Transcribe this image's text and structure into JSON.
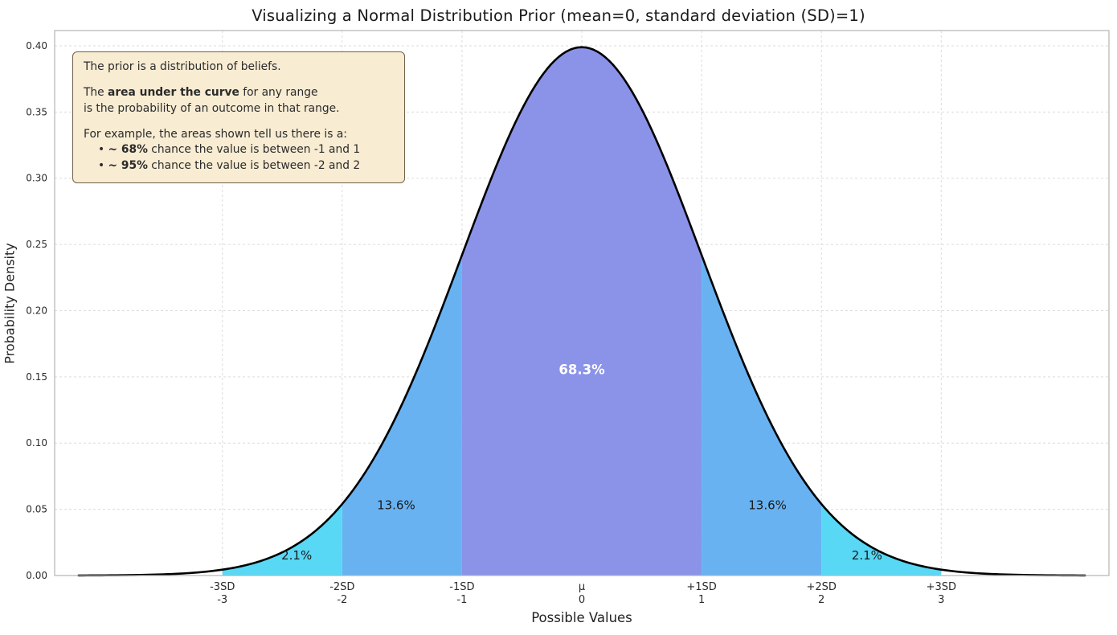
{
  "title": "Visualizing a Normal Distribution Prior (mean=0, standard deviation (SD)=1)",
  "annotation": {
    "line1": "The prior is a distribution of beliefs.",
    "line2_pre": "The ",
    "line2_bold": "area under the curve",
    "line2_post": " for any range",
    "line3": "is the probability of an outcome in that range.",
    "line4": "For example, the areas shown tell us there is a:",
    "bullet_glyph": "•",
    "bullet1_bold": "~ 68%",
    "bullet1_rest": " chance the value is between -1 and 1",
    "bullet2_bold": "~ 95%",
    "bullet2_rest": " chance the value is between -2 and 2"
  },
  "chart_data": {
    "type": "area",
    "title": "Visualizing a Normal Distribution Prior (mean=0, standard deviation (SD)=1)",
    "xlabel": "Possible Values",
    "ylabel": "Probability Density",
    "distribution": "normal",
    "mean": 0,
    "sd": 1,
    "xlim": [
      -4.4,
      4.4
    ],
    "ylim": [
      0,
      0.4115
    ],
    "curve_range": [
      -4.2,
      4.2
    ],
    "grid": true,
    "grid_color": "#dcdcdc",
    "spine_color": "#b5b5b5",
    "curve_color": "#000000",
    "background": "#ffffff",
    "yticks": [
      {
        "v": 0.0,
        "label": "0.00"
      },
      {
        "v": 0.05,
        "label": "0.05"
      },
      {
        "v": 0.1,
        "label": "0.10"
      },
      {
        "v": 0.15,
        "label": "0.15"
      },
      {
        "v": 0.2,
        "label": "0.20"
      },
      {
        "v": 0.25,
        "label": "0.25"
      },
      {
        "v": 0.3,
        "label": "0.30"
      },
      {
        "v": 0.35,
        "label": "0.35"
      },
      {
        "v": 0.4,
        "label": "0.40"
      }
    ],
    "xticks": [
      {
        "x": -3,
        "sd": "-3SD",
        "value": "-3"
      },
      {
        "x": -2,
        "sd": "-2SD",
        "value": "-2"
      },
      {
        "x": -1,
        "sd": "-1SD",
        "value": "-1"
      },
      {
        "x": 0,
        "sd": "μ",
        "value": "0"
      },
      {
        "x": 1,
        "sd": "+1SD",
        "value": "1"
      },
      {
        "x": 2,
        "sd": "+2SD",
        "value": "2"
      },
      {
        "x": 3,
        "sd": "+3SD",
        "value": "3"
      }
    ],
    "regions": [
      {
        "from": -1,
        "to": 1,
        "color": "#8b93e9",
        "probability": 68.3,
        "label": "68.3%",
        "label_x": 0,
        "label_y": 0.152,
        "label_color": "#ffffff",
        "bold": true
      },
      {
        "from": -2,
        "to": -1,
        "color": "#68b2f2",
        "probability": 13.6,
        "label": "13.6%",
        "label_x": -1.55,
        "label_y": 0.05,
        "label_color": "#1a1a1a",
        "bold": false
      },
      {
        "from": 1,
        "to": 2,
        "color": "#68b2f2",
        "probability": 13.6,
        "label": "13.6%",
        "label_x": 1.55,
        "label_y": 0.05,
        "label_color": "#1a1a1a",
        "bold": false
      },
      {
        "from": -3,
        "to": -2,
        "color": "#58d8f5",
        "probability": 2.1,
        "label": "2.1%",
        "label_x": -2.38,
        "label_y": 0.012,
        "label_color": "#1a1a1a",
        "bold": false
      },
      {
        "from": 2,
        "to": 3,
        "color": "#58d8f5",
        "probability": 2.1,
        "label": "2.1%",
        "label_x": 2.38,
        "label_y": 0.012,
        "label_color": "#1a1a1a",
        "bold": false
      }
    ]
  }
}
